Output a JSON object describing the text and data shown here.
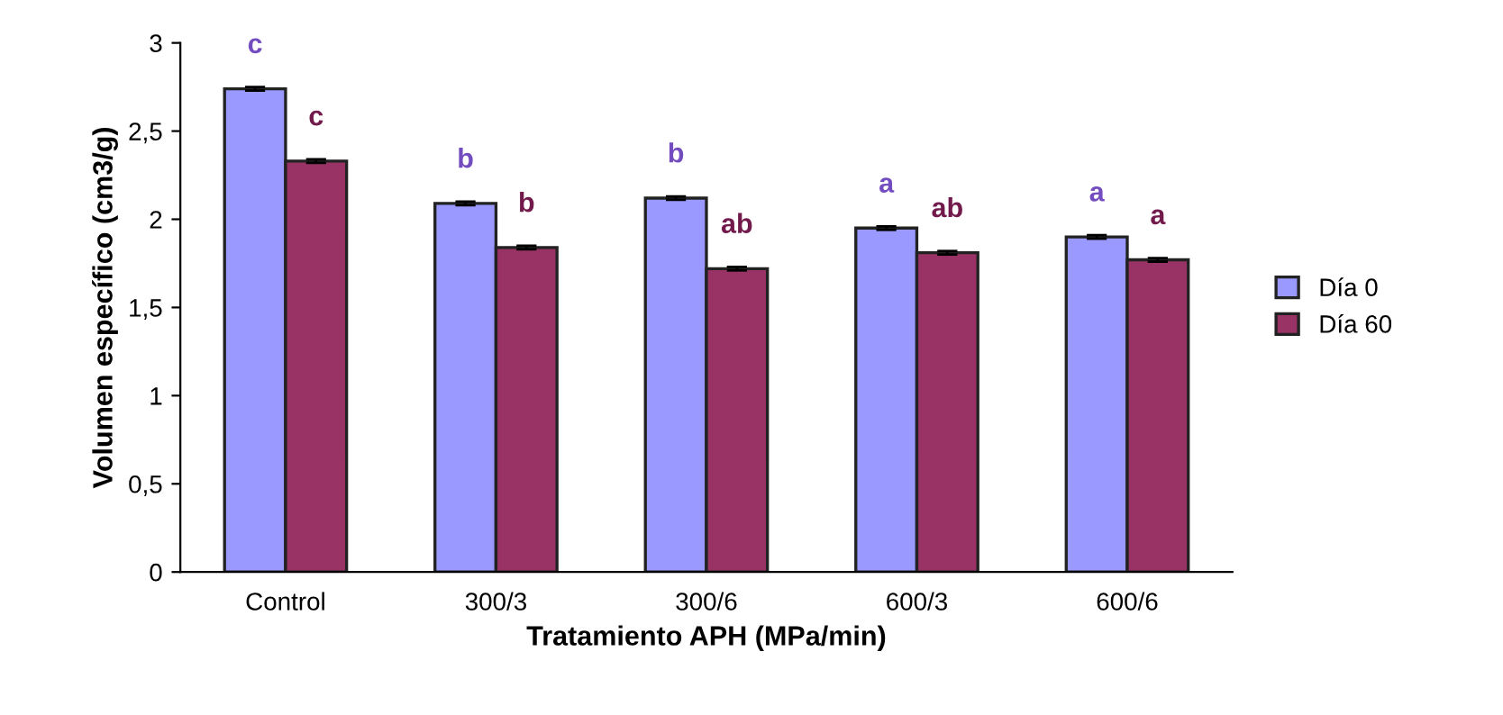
{
  "chart_data": {
    "type": "bar",
    "xlabel": "Tratamiento APH (MPa/min)",
    "ylabel": "Volumen específico (cm3/g)",
    "categories": [
      "Control",
      "300/3",
      "300/6",
      "600/3",
      "600/6"
    ],
    "series": [
      {
        "name": "Día 0",
        "color": "#9999ff",
        "values": [
          2.74,
          2.09,
          2.12,
          1.95,
          1.9
        ],
        "errors": [
          0.01,
          0.01,
          0.01,
          0.01,
          0.01
        ],
        "value_labels": [
          "c",
          "b",
          "b",
          "a",
          "a"
        ]
      },
      {
        "name": "Día 60",
        "color": "#993366",
        "values": [
          2.33,
          1.84,
          1.72,
          1.81,
          1.77
        ],
        "errors": [
          0.01,
          0.01,
          0.01,
          0.01,
          0.01
        ],
        "value_labels": [
          "c",
          "b",
          "ab",
          "ab",
          "a"
        ]
      }
    ],
    "ylim": [
      0,
      3
    ],
    "yticks": [
      0,
      {
        "value": 0.5,
        "label": "0,5"
      },
      1,
      {
        "value": 1.5,
        "label": "1,5"
      },
      2,
      {
        "value": 2.5,
        "label": "2,5"
      },
      3
    ],
    "grid": false,
    "legend": "right"
  }
}
